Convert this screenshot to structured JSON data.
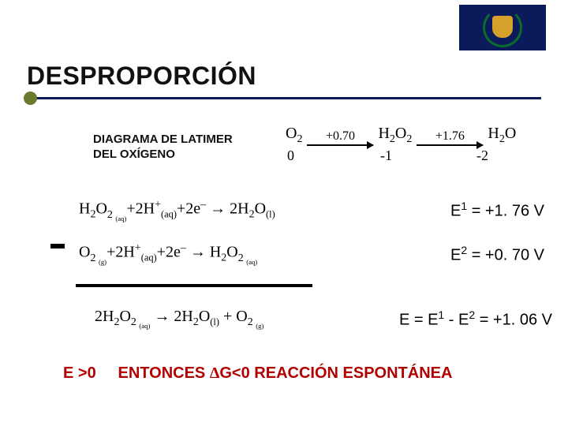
{
  "logo": {
    "bg": "#0a1a5a",
    "leaf": "#0a6b2b",
    "shield": "#d6a12a"
  },
  "title": "DESPROPORCIÓN",
  "accent": {
    "bar_color": "#0a1a5a",
    "dot_color": "#6a7a2f"
  },
  "subtitle_line1": "DIAGRAMA DE LATIMER",
  "subtitle_line2": "DEL OXÍGENO",
  "latimer": {
    "species": [
      "O₂",
      "H₂O₂",
      "H₂O"
    ],
    "potentials": [
      "+0.70",
      "+1.76"
    ],
    "ox_states": [
      "0",
      "-1",
      "-2"
    ]
  },
  "eq1": {
    "formula": "H₂O₂ (aq) + 2H⁺(aq) + 2e⁻ → 2H₂O(l)",
    "value_label": "E",
    "value_sup": "1",
    "value_rhs": " = +1. 76 V"
  },
  "eq2": {
    "formula": "O₂ (g) + 2H⁺(aq) + 2e⁻ → H₂O₂ (aq)",
    "value_label": "E",
    "value_sup": "2",
    "value_rhs": " = +0. 70 V"
  },
  "eq3": {
    "formula": "2H₂O₂ (aq) → 2H₂O(l) + O₂ (g)",
    "value_text": "E = E¹ - E² = +1. 06 V"
  },
  "conclusion": {
    "lhs": "E >0",
    "rhs": "ENTONCES ΔG<0 REACCIÓN ESPONTÁNEA"
  },
  "colors": {
    "text": "#000000",
    "conclusion": "#b00000"
  },
  "typography": {
    "title_pt": 32,
    "subtitle_pt": 15,
    "body_pt": 20,
    "conclusion_pt": 20
  }
}
